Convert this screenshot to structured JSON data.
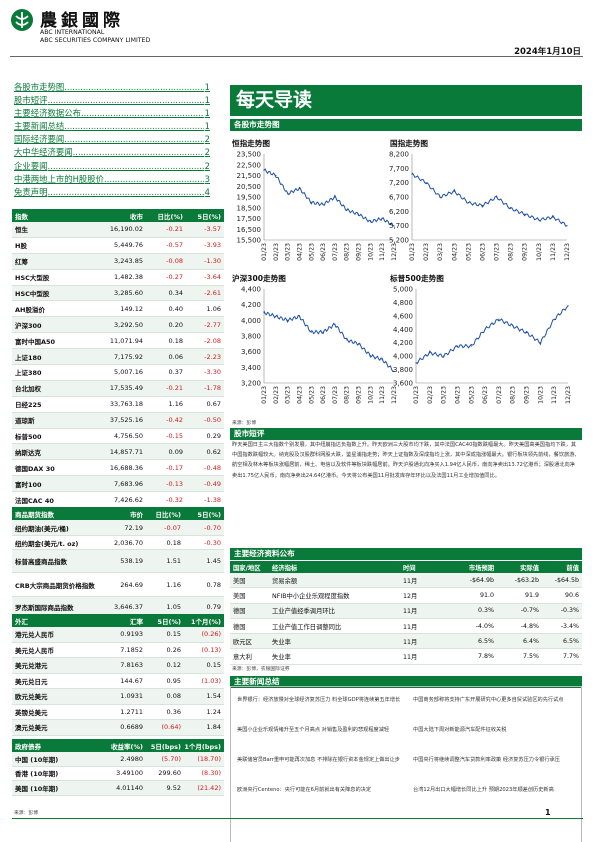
{
  "header": {
    "logo_cn": "農銀國際",
    "logo_en1": "ABC INTERNATIONAL",
    "logo_en2": "ABC SECURITIES COMPANY LIMITED",
    "date": "2024年1月10日"
  },
  "toc": [
    {
      "title": "各股市走势图",
      "page": "1"
    },
    {
      "title": "股市短评",
      "page": "1"
    },
    {
      "title": "主要经济数据公布",
      "page": "1"
    },
    {
      "title": "主要新闻总结",
      "page": "1"
    },
    {
      "title": "国际经济要闻",
      "page": "2"
    },
    {
      "title": "大中华经济要闻",
      "page": "2"
    },
    {
      "title": "企业要闻",
      "page": "2"
    },
    {
      "title": "中港两地上市的H股股价",
      "page": "3"
    },
    {
      "title": "免责声明",
      "page": "4"
    }
  ],
  "index_table": {
    "headers": [
      "指数",
      "收市",
      "日比(%)",
      "5日(%)"
    ],
    "rows": [
      [
        "恒生",
        "16,190.02",
        "-0.21",
        "-3.57"
      ],
      [
        "H股",
        "5,449.76",
        "-0.57",
        "-3.93"
      ],
      [
        "红筹",
        "3,243.85",
        "-0.08",
        "-1.30"
      ],
      [
        "HSC大型股",
        "1,482.38",
        "-0.27",
        "-3.64"
      ],
      [
        "HSC中型股",
        "3,285.60",
        "0.34",
        "-2.61"
      ],
      [
        "AH股溢价",
        "149.12",
        "0.40",
        "1.06"
      ],
      [
        "沪深300",
        "3,292.50",
        "0.20",
        "-2.77"
      ],
      [
        "富时中国A50",
        "11,071.94",
        "0.18",
        "-2.08"
      ],
      [
        "上证180",
        "7,175.92",
        "0.06",
        "-2.23"
      ],
      [
        "上证380",
        "5,007.16",
        "0.37",
        "-3.30"
      ],
      [
        "台北加权",
        "17,535.49",
        "-0.21",
        "-1.78"
      ],
      [
        "日经225",
        "33,763.18",
        "1.16",
        "0.67"
      ],
      [
        "道琼斯",
        "37,525.16",
        "-0.42",
        "-0.50"
      ],
      [
        "标普500",
        "4,756.50",
        "-0.15",
        "0.29"
      ],
      [
        "纳斯达克",
        "14,857.71",
        "0.09",
        "0.62"
      ],
      [
        "德国DAX 30",
        "16,688.36",
        "-0.17",
        "-0.48"
      ],
      [
        "富时100",
        "7,683.96",
        "-0.13",
        "-0.49"
      ],
      [
        "法国CAC 40",
        "7,426.62",
        "-0.32",
        "-1.38"
      ]
    ]
  },
  "commodity_table": {
    "headers": [
      "商品期货指数",
      "市价",
      "日比(%)",
      "5日(%)"
    ],
    "rows": [
      [
        "纽约期油(美元/桶)",
        "72.19",
        "-0.07",
        "-0.70"
      ],
      [
        "纽约期金(美元/t. oz)",
        "2,036.70",
        "0.18",
        "-0.30"
      ],
      [
        "标普高盛商品指数",
        "538.19",
        "1.51",
        "1.45"
      ],
      [
        "CRB大宗商品期货价格指数",
        "264.69",
        "1.16",
        "0.78"
      ],
      [
        "罗杰斯国际商品指数",
        "3,646.37",
        "1.05",
        "0.79"
      ]
    ]
  },
  "fx_table": {
    "headers": [
      "外汇",
      "汇率",
      "5日(%)",
      "1个月(%)"
    ],
    "rows": [
      [
        "港元兑人民币",
        "0.9193",
        "0.15",
        "(0.26)"
      ],
      [
        "美元兑人民币",
        "7.1852",
        "0.26",
        "(0.13)"
      ],
      [
        "美元兑港元",
        "7.8163",
        "0.12",
        "0.15"
      ],
      [
        "美元兑日元",
        "144.67",
        "0.95",
        "(1.03)"
      ],
      [
        "欧元兑美元",
        "1.0931",
        "0.08",
        "1.54"
      ],
      [
        "英镑兑美元",
        "1.2711",
        "0.36",
        "1.24"
      ],
      [
        "澳元兑美元",
        "0.6689",
        "(0.64)",
        "1.84"
      ]
    ]
  },
  "bond_table": {
    "headers": [
      "政府债券",
      "收益率(%)",
      "5日(bps)",
      "1个月(bps)"
    ],
    "rows": [
      [
        "中国 (10年期)",
        "2.4980",
        "(5.70)",
        "(18.70)"
      ],
      [
        "香港 (10年期)",
        "3.49100",
        "299.60",
        "(8.30)"
      ],
      [
        "美国 (10年期)",
        "4.01140",
        "9.52",
        "(21.42)"
      ]
    ]
  },
  "source_note": "来源：彭博",
  "title": "每天导读",
  "sections": {
    "charts": "各股市走势图",
    "summary": "股市短评",
    "econ": "主要经济资料公布",
    "news": "主要新闻总结"
  },
  "chart_data": [
    {
      "type": "line",
      "title": "恒指走势图",
      "x": [
        "01/23",
        "02/23",
        "03/23",
        "04/23",
        "05/23",
        "06/23",
        "07/23",
        "08/23",
        "09/23",
        "10/23",
        "11/23",
        "12/23"
      ],
      "y": [
        22000,
        21500,
        19800,
        20300,
        19000,
        18800,
        19500,
        18300,
        17900,
        17200,
        17500,
        16800
      ],
      "ylim": [
        15500,
        23500
      ],
      "yticks": [
        15500,
        16500,
        17500,
        18500,
        19500,
        20500,
        21500,
        22500,
        23500
      ],
      "ytick_labels": [
        "15,500",
        "16,500",
        "17,500",
        "18,500",
        "19,500",
        "20,500",
        "21,500",
        "22,500",
        "23,500"
      ]
    },
    {
      "type": "line",
      "title": "国指走势图",
      "x": [
        "01/23",
        "02/23",
        "03/23",
        "04/23",
        "05/23",
        "06/23",
        "07/23",
        "08/23",
        "09/23",
        "10/23",
        "11/23",
        "12/23"
      ],
      "y": [
        7500,
        7200,
        6700,
        6900,
        6500,
        6400,
        6700,
        6300,
        6100,
        5900,
        6000,
        5700
      ],
      "ylim": [
        5200,
        8200
      ],
      "yticks": [
        5200,
        5700,
        6200,
        6700,
        7200,
        7700,
        8200
      ],
      "ytick_labels": [
        "5,200",
        "5,700",
        "6,200",
        "6,700",
        "7,200",
        "7,700",
        "8,200"
      ]
    },
    {
      "type": "line",
      "title": "沪深300走势图",
      "x": [
        "01/23",
        "02/23",
        "03/23",
        "04/23",
        "05/23",
        "06/23",
        "07/23",
        "08/23",
        "09/23",
        "10/23",
        "11/23",
        "12/23"
      ],
      "y": [
        4100,
        4050,
        4000,
        4050,
        3850,
        3850,
        3950,
        3750,
        3700,
        3550,
        3500,
        3350
      ],
      "ylim": [
        3200,
        4400
      ],
      "yticks": [
        3200,
        3400,
        3600,
        3800,
        4000,
        4200,
        4400
      ],
      "ytick_labels": [
        "3,200",
        "3,400",
        "3,600",
        "3,800",
        "4,000",
        "4,200",
        "4,400"
      ]
    },
    {
      "type": "line",
      "title": "标普500走势图",
      "x": [
        "01/23",
        "02/23",
        "03/23",
        "04/23",
        "05/23",
        "06/23",
        "07/23",
        "08/23",
        "09/23",
        "10/23",
        "11/23",
        "12/23"
      ],
      "y": [
        3900,
        4050,
        4000,
        4150,
        4150,
        4400,
        4550,
        4450,
        4350,
        4200,
        4550,
        4750
      ],
      "ylim": [
        3600,
        5000
      ],
      "yticks": [
        3600,
        3800,
        4000,
        4200,
        4400,
        4600,
        4800,
        5000
      ],
      "ytick_labels": [
        "3,600",
        "3,800",
        "4,000",
        "4,200",
        "4,400",
        "4,600",
        "4,800",
        "5,000"
      ]
    }
  ],
  "chart_source": "来源：彭博",
  "summary_text": "昨天美国日主三大指数个别发展，其中纽崩指达负指数上升。昨天欧洲三大股市均下跌，其中法国CAC40指数跌幅最大。昨天美国高美国指均下跌，其中国指数跌幅较大。纳克股及汉股群科网股大跌，鉴星浦指走势；昨天上证指数及深成指均上涨，其中深成指涨幅最大。银行板块领先前线，餐饮旅游、航空相及林木等板块涨幅居前，稀土、电信以及软件等板块跌幅居前。昨天沪股通北向净买入1.94亿人民币，南向净卖出13.72亿港币；深股通北向净卖出1.75亿人民币，南向净卖出24.64亿港币。今天将公布美国11月批发库存年环比以及法国11月工业增加值同比。",
  "econ_table": {
    "headers": [
      "国家/地区",
      "经济指标",
      "时间",
      "市场预期",
      "实际值",
      "前值"
    ],
    "rows": [
      [
        "美国",
        "贸易余额",
        "11月",
        "-$64.9b",
        "-$63.2b",
        "-$64.5b"
      ],
      [
        "美国",
        "NFIB中小企业乐观程度指数",
        "12月",
        "91.0",
        "91.9",
        "90.6"
      ],
      [
        "德国",
        "工业产值经季调月环比",
        "11月",
        "0.3%",
        "-0.7%",
        "-0.3%"
      ],
      [
        "德国",
        "工业产值工作日调整同比",
        "11月",
        "-4.0%",
        "-4.8%",
        "-3.4%"
      ],
      [
        "欧元区",
        "失业率",
        "11月",
        "6.5%",
        "6.4%",
        "6.5%"
      ],
      [
        "意大利",
        "失业率",
        "11月",
        "7.8%",
        "7.5%",
        "7.7%"
      ]
    ],
    "source": "来源：彭博，农银国际证券"
  },
  "news_left": [
    "世界银行：经济放慢对全球经济复苏压力 料全球GDP将连续第五年增长",
    "美国小企业乐观情绪升至五个月高点 对销售及盈利的悲观程度减轻",
    "美联储官员Barr重申可能再次加息 不排除在银行资本金规定上做出让步",
    "欧洲央行Centeno：央行可能在6月前就出有关降息的决定"
  ],
  "news_right": [
    "中国商务部称将支持广东开展研究中心更多自贸试验区的先行试点",
    "中国大陆下周对新能源汽车配件征收关税",
    "中国央行将继续调整汽车贷款利率政策 经济复苏压力令银行承压",
    "台湾12月出口大幅增长同比上升 预期2023年顺差创历史新高"
  ],
  "page_number": "1",
  "colors": {
    "brand_green": "#0a7a3a",
    "negative": "#d11a1a"
  }
}
